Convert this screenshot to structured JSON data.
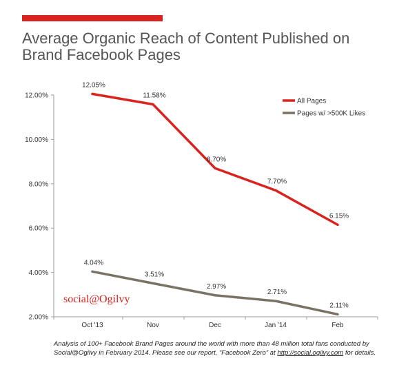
{
  "header": {
    "title_line1": "Average Organic Reach of Content Published on",
    "title_line2": "Brand Facebook Pages",
    "accent_color": "#d9231e"
  },
  "watermark": "social@Ogilvy",
  "footnote": {
    "part1": "Analysis of 100+ Facebook Brand Pages around the world with more than 48 million total fans conducted by Social@Ogilvy in February 2014. Please see our report, “Facebook Zero” at ",
    "link": "http://social.ogilvy.com",
    "part2": " for details."
  },
  "chart_data": {
    "type": "line",
    "title": "Average Organic Reach of Content Published on Brand Facebook Pages",
    "xlabel": "",
    "ylabel": "",
    "categories": [
      "Oct '13",
      "Nov",
      "Dec",
      "Jan '14",
      "Feb"
    ],
    "ylim": [
      2,
      12
    ],
    "yticks": [
      2,
      4,
      6,
      8,
      10,
      12
    ],
    "ytick_labels": [
      "2.00%",
      "4.00%",
      "6.00%",
      "8.00%",
      "10.00%",
      "12.00%"
    ],
    "grid": false,
    "legend_position": "top-right",
    "series": [
      {
        "name": "All Pages",
        "color": "#d9231e",
        "values": [
          12.05,
          11.58,
          8.7,
          7.7,
          6.15
        ],
        "labels": [
          "12.05%",
          "11.58%",
          "8.70%",
          "7.70%",
          "6.15%"
        ]
      },
      {
        "name": "Pages w/ >500K Likes",
        "color": "#7a7265",
        "values": [
          4.04,
          3.51,
          2.97,
          2.71,
          2.11
        ],
        "labels": [
          "4.04%",
          "3.51%",
          "2.97%",
          "2.71%",
          "2.11%"
        ]
      }
    ]
  }
}
